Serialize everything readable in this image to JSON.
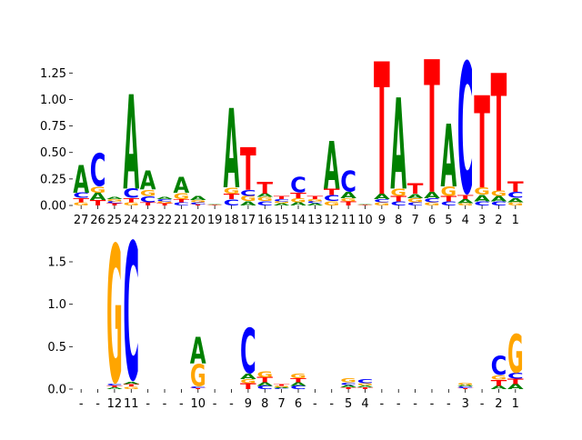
{
  "colors": {
    "A": "#008000",
    "C": "#0000ff",
    "G": "#ffa500",
    "T": "#ff0000"
  },
  "chart_data": [
    {
      "type": "sequence-logo",
      "ylim": [
        0,
        1.45
      ],
      "yticks": [
        "0.00",
        "0.25",
        "0.50",
        "0.75",
        "1.00",
        "1.25"
      ],
      "ytick_values": [
        0,
        0.25,
        0.5,
        0.75,
        1.0,
        1.25
      ],
      "positions": [
        {
          "label": "27",
          "letters": [
            [
              "G",
              0.03
            ],
            [
              "T",
              0.04
            ],
            [
              "C",
              0.05
            ],
            [
              "A",
              0.26
            ]
          ]
        },
        {
          "label": "26",
          "letters": [
            [
              "T",
              0.05
            ],
            [
              "A",
              0.07
            ],
            [
              "G",
              0.06
            ],
            [
              "C",
              0.32
            ]
          ]
        },
        {
          "label": "25",
          "letters": [
            [
              "T",
              0.02
            ],
            [
              "C",
              0.02
            ],
            [
              "G",
              0.02
            ],
            [
              "A",
              0.02
            ]
          ]
        },
        {
          "label": "24",
          "letters": [
            [
              "G",
              0.03
            ],
            [
              "T",
              0.04
            ],
            [
              "C",
              0.09
            ],
            [
              "A",
              0.89
            ]
          ]
        },
        {
          "label": "23",
          "letters": [
            [
              "T",
              0.03
            ],
            [
              "C",
              0.06
            ],
            [
              "G",
              0.06
            ],
            [
              "A",
              0.18
            ]
          ]
        },
        {
          "label": "22",
          "letters": [
            [
              "T",
              0.02
            ],
            [
              "G",
              0.02
            ],
            [
              "C",
              0.02
            ],
            [
              "A",
              0.02
            ]
          ]
        },
        {
          "label": "21",
          "letters": [
            [
              "C",
              0.03
            ],
            [
              "T",
              0.03
            ],
            [
              "G",
              0.06
            ],
            [
              "A",
              0.15
            ]
          ]
        },
        {
          "label": "20",
          "letters": [
            [
              "T",
              0.01
            ],
            [
              "C",
              0.02
            ],
            [
              "G",
              0.02
            ],
            [
              "A",
              0.04
            ]
          ]
        },
        {
          "label": "19",
          "letters": [
            [
              "T",
              0.003
            ],
            [
              "C",
              0.003
            ],
            [
              "G",
              0.003
            ],
            [
              "A",
              0.003
            ]
          ]
        },
        {
          "label": "18",
          "letters": [
            [
              "C",
              0.06
            ],
            [
              "T",
              0.05
            ],
            [
              "G",
              0.06
            ],
            [
              "A",
              0.75
            ]
          ]
        },
        {
          "label": "17",
          "letters": [
            [
              "A",
              0.04
            ],
            [
              "G",
              0.05
            ],
            [
              "C",
              0.06
            ],
            [
              "T",
              0.4
            ]
          ]
        },
        {
          "label": "16",
          "letters": [
            [
              "C",
              0.04
            ],
            [
              "G",
              0.04
            ],
            [
              "A",
              0.03
            ],
            [
              "T",
              0.11
            ]
          ]
        },
        {
          "label": "15",
          "letters": [
            [
              "A",
              0.02
            ],
            [
              "G",
              0.02
            ],
            [
              "C",
              0.02
            ],
            [
              "T",
              0.03
            ]
          ]
        },
        {
          "label": "14",
          "letters": [
            [
              "A",
              0.03
            ],
            [
              "G",
              0.04
            ],
            [
              "T",
              0.05
            ],
            [
              "C",
              0.15
            ]
          ]
        },
        {
          "label": "13",
          "letters": [
            [
              "A",
              0.02
            ],
            [
              "C",
              0.02
            ],
            [
              "G",
              0.02
            ],
            [
              "T",
              0.03
            ]
          ]
        },
        {
          "label": "12",
          "letters": [
            [
              "G",
              0.04
            ],
            [
              "C",
              0.06
            ],
            [
              "T",
              0.06
            ],
            [
              "A",
              0.45
            ]
          ]
        },
        {
          "label": "11",
          "letters": [
            [
              "T",
              0.04
            ],
            [
              "G",
              0.03
            ],
            [
              "A",
              0.06
            ],
            [
              "C",
              0.2
            ]
          ]
        },
        {
          "label": "10",
          "letters": [
            [
              "T",
              0.003
            ],
            [
              "C",
              0.003
            ],
            [
              "G",
              0.003
            ],
            [
              "A",
              0.003
            ]
          ]
        },
        {
          "label": "9",
          "letters": [
            [
              "G",
              0.03
            ],
            [
              "C",
              0.03
            ],
            [
              "A",
              0.05
            ],
            [
              "T",
              1.25
            ]
          ]
        },
        {
          "label": "8",
          "letters": [
            [
              "C",
              0.04
            ],
            [
              "T",
              0.05
            ],
            [
              "G",
              0.07
            ],
            [
              "A",
              0.86
            ]
          ]
        },
        {
          "label": "7",
          "letters": [
            [
              "C",
              0.03
            ],
            [
              "G",
              0.04
            ],
            [
              "A",
              0.04
            ],
            [
              "T",
              0.1
            ]
          ]
        },
        {
          "label": "6",
          "letters": [
            [
              "G",
              0.03
            ],
            [
              "C",
              0.04
            ],
            [
              "A",
              0.06
            ],
            [
              "T",
              1.25
            ]
          ]
        },
        {
          "label": "5",
          "letters": [
            [
              "C",
              0.04
            ],
            [
              "T",
              0.05
            ],
            [
              "G",
              0.09
            ],
            [
              "A",
              0.59
            ]
          ]
        },
        {
          "label": "4",
          "letters": [
            [
              "G",
              0.02
            ],
            [
              "A",
              0.04
            ],
            [
              "T",
              0.04
            ],
            [
              "C",
              1.28
            ]
          ]
        },
        {
          "label": "3",
          "letters": [
            [
              "C",
              0.04
            ],
            [
              "A",
              0.06
            ],
            [
              "G",
              0.07
            ],
            [
              "T",
              0.87
            ]
          ]
        },
        {
          "label": "2",
          "letters": [
            [
              "C",
              0.04
            ],
            [
              "A",
              0.05
            ],
            [
              "G",
              0.05
            ],
            [
              "T",
              1.11
            ]
          ]
        },
        {
          "label": "1",
          "letters": [
            [
              "G",
              0.03
            ],
            [
              "A",
              0.04
            ],
            [
              "C",
              0.06
            ],
            [
              "T",
              0.1
            ]
          ]
        }
      ]
    },
    {
      "type": "sequence-logo",
      "ylim": [
        0,
        1.8
      ],
      "yticks": [
        "0.0",
        "0.5",
        "1.0",
        "1.5"
      ],
      "ytick_values": [
        0,
        0.5,
        1.0,
        1.5
      ],
      "positions": [
        {
          "label": "-",
          "letters": []
        },
        {
          "label": "-",
          "letters": []
        },
        {
          "label": "12",
          "letters": [
            [
              "A",
              0.02
            ],
            [
              "T",
              0.02
            ],
            [
              "C",
              0.02
            ],
            [
              "G",
              1.68
            ]
          ]
        },
        {
          "label": "11",
          "letters": [
            [
              "G",
              0.03
            ],
            [
              "T",
              0.03
            ],
            [
              "A",
              0.03
            ],
            [
              "C",
              1.68
            ]
          ]
        },
        {
          "label": "-",
          "letters": []
        },
        {
          "label": "-",
          "letters": []
        },
        {
          "label": "-",
          "letters": []
        },
        {
          "label": "10",
          "letters": [
            [
              "T",
              0.01
            ],
            [
              "C",
              0.02
            ],
            [
              "G",
              0.27
            ],
            [
              "A",
              0.31
            ]
          ]
        },
        {
          "label": "-",
          "letters": []
        },
        {
          "label": "-",
          "letters": []
        },
        {
          "label": "9",
          "letters": [
            [
              "T",
              0.07
            ],
            [
              "G",
              0.05
            ],
            [
              "A",
              0.06
            ],
            [
              "C",
              0.55
            ]
          ]
        },
        {
          "label": "8",
          "letters": [
            [
              "C",
              0.04
            ],
            [
              "A",
              0.04
            ],
            [
              "T",
              0.06
            ],
            [
              "G",
              0.07
            ]
          ]
        },
        {
          "label": "7",
          "letters": [
            [
              "C",
              0.01
            ],
            [
              "A",
              0.01
            ],
            [
              "G",
              0.02
            ],
            [
              "T",
              0.02
            ]
          ]
        },
        {
          "label": "6",
          "letters": [
            [
              "C",
              0.04
            ],
            [
              "A",
              0.04
            ],
            [
              "T",
              0.05
            ],
            [
              "G",
              0.06
            ]
          ]
        },
        {
          "label": "-",
          "letters": []
        },
        {
          "label": "-",
          "letters": []
        },
        {
          "label": "5",
          "letters": [
            [
              "T",
              0.02
            ],
            [
              "A",
              0.03
            ],
            [
              "C",
              0.03
            ],
            [
              "G",
              0.05
            ]
          ]
        },
        {
          "label": "4",
          "letters": [
            [
              "T",
              0.02
            ],
            [
              "A",
              0.02
            ],
            [
              "G",
              0.03
            ],
            [
              "C",
              0.05
            ]
          ]
        },
        {
          "label": "-",
          "letters": []
        },
        {
          "label": "-",
          "letters": []
        },
        {
          "label": "-",
          "letters": []
        },
        {
          "label": "-",
          "letters": []
        },
        {
          "label": "-",
          "letters": []
        },
        {
          "label": "3",
          "letters": [
            [
              "T",
              0.01
            ],
            [
              "C",
              0.02
            ],
            [
              "A",
              0.02
            ],
            [
              "G",
              0.03
            ]
          ]
        },
        {
          "label": "-",
          "letters": []
        },
        {
          "label": "2",
          "letters": [
            [
              "A",
              0.04
            ],
            [
              "T",
              0.07
            ],
            [
              "G",
              0.05
            ],
            [
              "C",
              0.23
            ]
          ]
        },
        {
          "label": "1",
          "letters": [
            [
              "A",
              0.06
            ],
            [
              "T",
              0.06
            ],
            [
              "C",
              0.07
            ],
            [
              "G",
              0.47
            ]
          ]
        }
      ]
    }
  ]
}
